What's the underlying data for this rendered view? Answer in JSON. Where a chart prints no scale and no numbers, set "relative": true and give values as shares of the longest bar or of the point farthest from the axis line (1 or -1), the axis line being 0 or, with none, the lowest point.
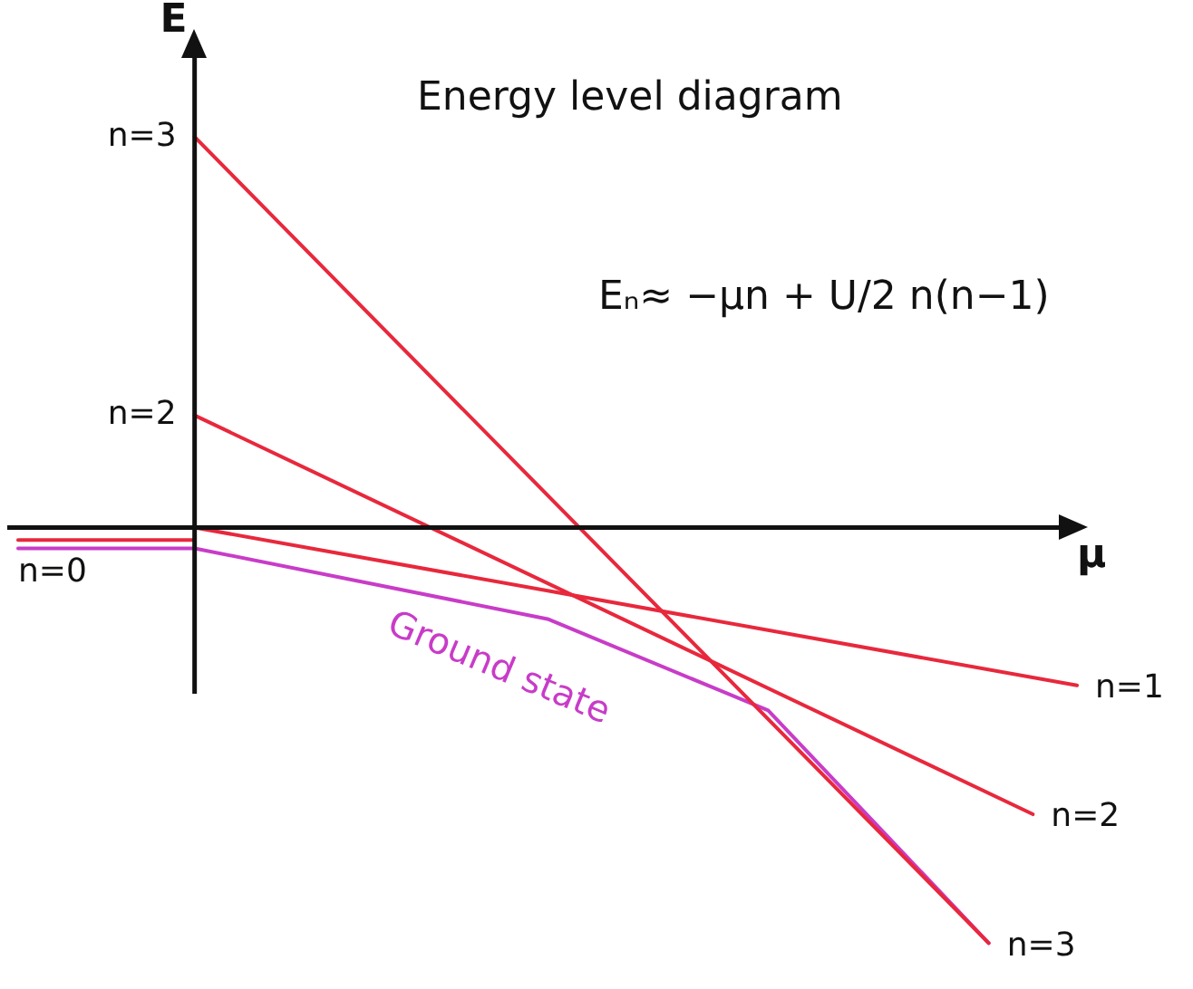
{
  "chart_data": {
    "type": "line",
    "relative": true,
    "xlabel": "μ",
    "ylabel": "E",
    "legend": false,
    "marker": "none",
    "line_style": "solid",
    "categories": [
      null,
      null,
      null,
      null,
      null,
      null,
      null,
      null,
      null,
      null,
      null,
      null,
      null,
      null,
      null,
      null,
      null,
      null,
      null,
      null,
      null,
      null,
      null,
      null,
      null
    ],
    "annotations": [
      "Energy level diagram",
      "Eₙ≈ −μn + U/2 n(n−1)",
      "n=3",
      "n=2"
    ],
    "series": [
      {
        "name": "n=0",
        "color": "#e8283c",
        "values": [
          -0.03,
          null,
          null,
          null,
          -0.03,
          null,
          null,
          null,
          null,
          null,
          null,
          null,
          null,
          null,
          null,
          null,
          null,
          null,
          null,
          null,
          null,
          null,
          null,
          null,
          null
        ]
      },
      {
        "name": "n=1",
        "color": "#e8283c",
        "values": [
          null,
          null,
          null,
          null,
          0,
          null,
          null,
          null,
          null,
          null,
          null,
          null,
          null,
          null,
          null,
          null,
          null,
          null,
          null,
          null,
          null,
          null,
          null,
          null,
          -0.38
        ]
      },
      {
        "name": "n=2",
        "color": "#e8283c",
        "values": [
          null,
          null,
          null,
          null,
          0.27,
          null,
          null,
          null,
          null,
          null,
          null,
          null,
          null,
          null,
          null,
          null,
          null,
          null,
          null,
          null,
          null,
          null,
          null,
          -0.69,
          null
        ]
      },
      {
        "name": "n=3",
        "color": "#e8283c",
        "values": [
          null,
          null,
          null,
          null,
          0.94,
          null,
          null,
          null,
          null,
          null,
          null,
          null,
          null,
          null,
          null,
          null,
          null,
          null,
          null,
          null,
          null,
          null,
          -1,
          null,
          null
        ]
      },
      {
        "name": "Ground state",
        "color": "#c83cc8",
        "values": [
          -0.05,
          null,
          null,
          null,
          -0.05,
          null,
          null,
          null,
          null,
          null,
          null,
          null,
          -0.22,
          null,
          null,
          null,
          null,
          -0.44,
          null,
          null,
          null,
          null,
          -1,
          null,
          null
        ]
      }
    ]
  }
}
